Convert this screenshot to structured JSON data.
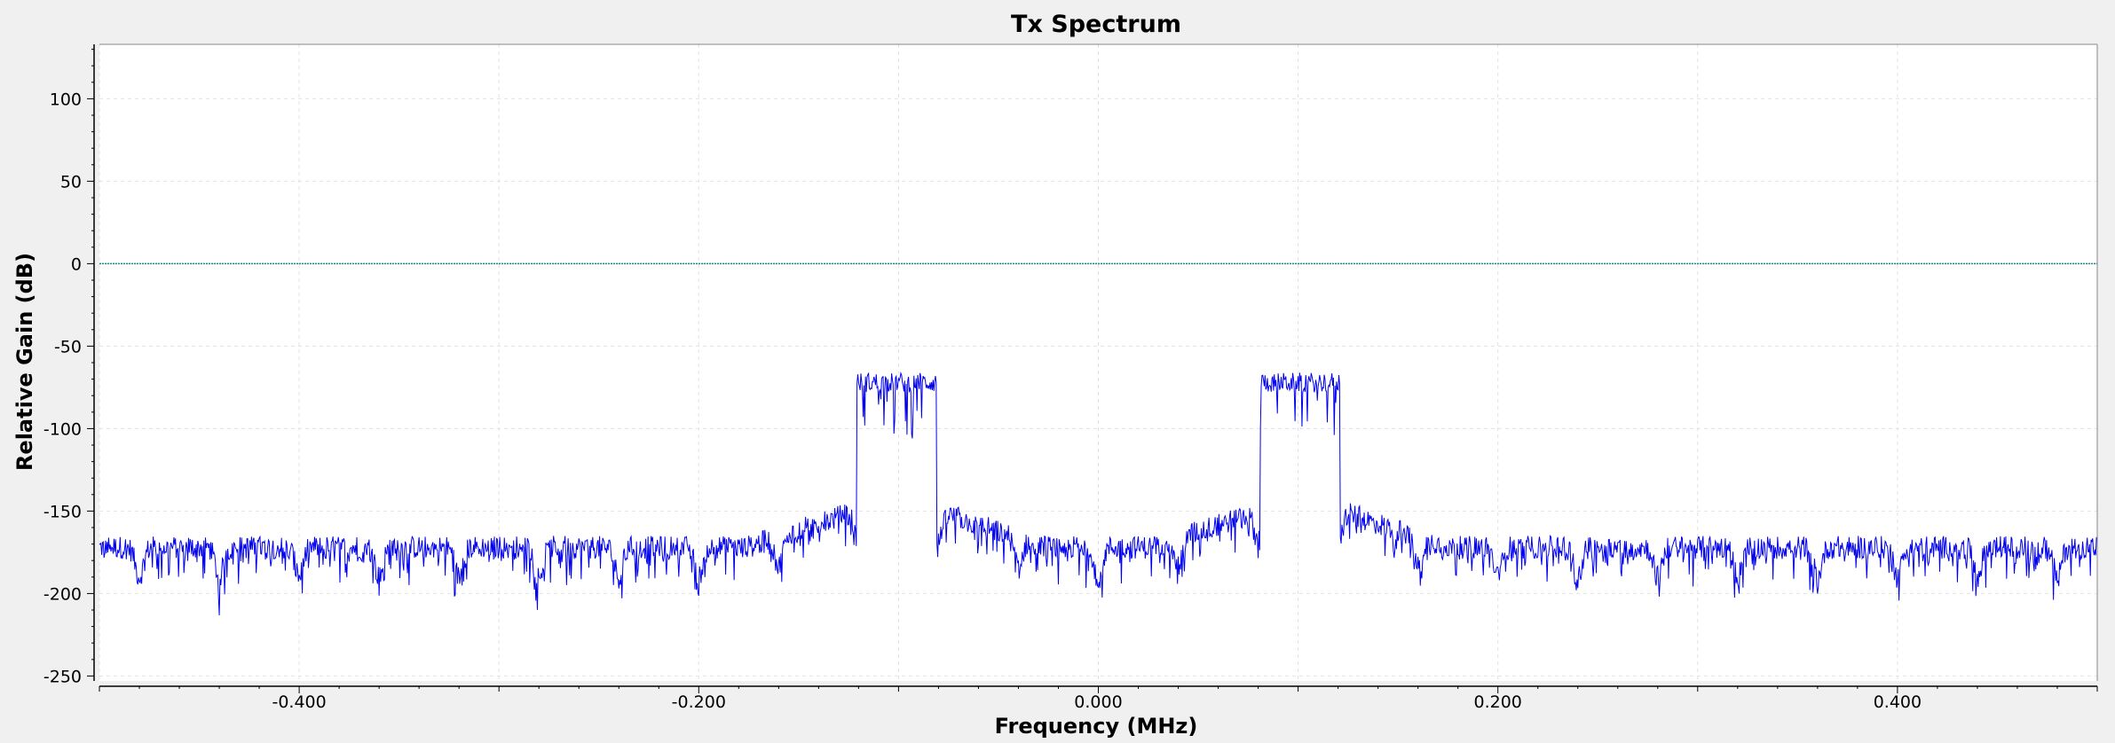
{
  "chart_data": {
    "type": "line",
    "title": "Tx Spectrum",
    "xlabel": "Frequency (MHz)",
    "ylabel": "Relative Gain (dB)",
    "xlim": [
      -0.5,
      0.5
    ],
    "ylim": [
      -253,
      133
    ],
    "x_ticks": [
      -0.4,
      -0.2,
      0.0,
      0.2,
      0.4
    ],
    "x_tick_labels": [
      "-0.400",
      "-0.200",
      "0.000",
      "0.200",
      "0.400"
    ],
    "y_ticks": [
      100,
      50,
      0,
      -50,
      -100,
      -150,
      -200,
      -250
    ],
    "y_tick_labels": [
      "100",
      "50",
      "0",
      "-50",
      "-100",
      "-150",
      "-200",
      "-250"
    ],
    "grid": true,
    "reference_line": {
      "y": 0,
      "color": "#1a8a8a"
    },
    "series": [
      {
        "color": "#0000ee",
        "noise_floor_db": -172,
        "noise_floor_range_db": [
          -200,
          -160
        ],
        "nulls_db": -205,
        "null_spacing_mhz": 0.04,
        "bands": [
          {
            "start_mhz": -0.121,
            "end_mhz": -0.081,
            "level_db": -72,
            "min_db": -110,
            "max_db": -65
          },
          {
            "start_mhz": 0.081,
            "end_mhz": 0.121,
            "level_db": -72,
            "min_db": -110,
            "max_db": -65
          }
        ],
        "skirt_peak_db": -150
      }
    ]
  },
  "colors": {
    "background": "#f0f0f0",
    "plot_background": "#ffffff",
    "trace": "#0000ee",
    "grid": "#e2e2e2"
  }
}
